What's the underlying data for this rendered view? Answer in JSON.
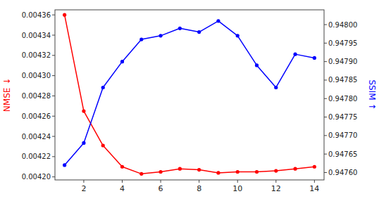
{
  "chart_data": {
    "type": "line",
    "x": [
      1,
      2,
      3,
      4,
      5,
      6,
      7,
      8,
      9,
      10,
      11,
      12,
      13,
      14
    ],
    "ylabel": "NMSE ↓",
    "y2label": "SSIM ↑",
    "xlim": [
      0.5,
      14.5
    ],
    "xticks": [
      2,
      4,
      6,
      8,
      10,
      12,
      14
    ],
    "ylim": [
      0.004197,
      0.004365
    ],
    "yticks": [
      {
        "value": 0.0042,
        "label": "0.00420"
      },
      0.00422,
      0.00424,
      0.00426,
      0.00428,
      {
        "value": 0.0043,
        "label": "0.00430"
      },
      0.00432,
      0.00434,
      0.00436
    ],
    "y2lim": [
      0.94758,
      0.94804
    ],
    "y2ticks": [
      {
        "value": 0.9476,
        "label": "0.94760"
      },
      0.94765,
      {
        "value": 0.9477,
        "label": "0.94770"
      },
      0.94775,
      {
        "value": 0.9478,
        "label": "0.94780"
      },
      0.94785,
      {
        "value": 0.9479,
        "label": "0.94790"
      },
      0.94795,
      {
        "value": 0.948,
        "label": "0.94800"
      }
    ],
    "grid": false,
    "series": [
      {
        "color": "#ff0000",
        "marker": "circle",
        "values": [
          0.00436,
          0.004265,
          0.004231,
          0.00421,
          0.004203,
          0.004205,
          0.004208,
          0.004207,
          0.004204,
          0.004205,
          0.004205,
          0.004206,
          0.004208,
          0.00421
        ]
      },
      {
        "color": "#0000ff",
        "marker": "circle",
        "axis": "y2",
        "values": [
          0.94762,
          0.94768,
          0.94783,
          0.9479,
          0.94796,
          0.94797,
          0.94799,
          0.94798,
          0.94801,
          0.94797,
          0.94789,
          0.94783,
          0.94792,
          0.94791
        ]
      }
    ]
  }
}
